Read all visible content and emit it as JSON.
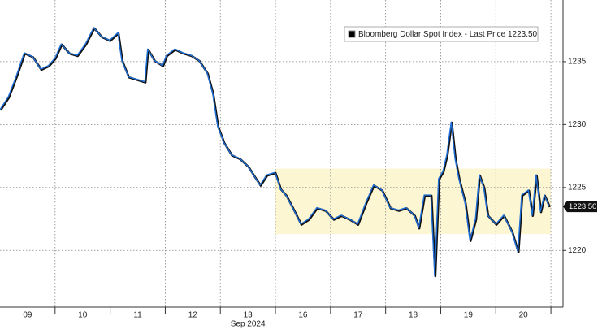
{
  "chart_data": {
    "type": "line",
    "series": [
      {
        "name": "Bloomberg Dollar Spot Index - Last Price 1223.50",
        "color": "#1f6fd8",
        "x": [
          0,
          0.15,
          0.29,
          0.44,
          0.59,
          0.74,
          0.88,
          1.0,
          1.11,
          1.25,
          1.4,
          1.55,
          1.7,
          1.84,
          1.99,
          2.14,
          2.21,
          2.33,
          2.48,
          2.63,
          2.68,
          2.8,
          2.95,
          3.02,
          3.17,
          3.32,
          3.47,
          3.61,
          3.76,
          3.86,
          3.95,
          4.06,
          4.2,
          4.35,
          4.5,
          4.6,
          4.72,
          4.84,
          4.99,
          5.09,
          5.19,
          5.31,
          5.46,
          5.6,
          5.75,
          5.9,
          6.05,
          6.19,
          6.34,
          6.49,
          6.64,
          6.78,
          6.93,
          7.08,
          7.23,
          7.37,
          7.52,
          7.6,
          7.7,
          7.82,
          7.89,
          7.96,
          8.04,
          8.11,
          8.19,
          8.26,
          8.33,
          8.44,
          8.53,
          8.63,
          8.7,
          8.78,
          8.85,
          9.0,
          9.14,
          9.29,
          9.4,
          9.47,
          9.59,
          9.66,
          9.73,
          9.81,
          9.88,
          9.97
        ],
        "values": [
          1231.2,
          1232.2,
          1233.8,
          1235.7,
          1235.4,
          1234.4,
          1234.7,
          1235.3,
          1236.4,
          1235.7,
          1235.5,
          1236.4,
          1237.7,
          1237.0,
          1236.7,
          1237.3,
          1235.1,
          1233.8,
          1233.6,
          1233.4,
          1236.0,
          1235.1,
          1234.7,
          1235.5,
          1236.0,
          1235.7,
          1235.5,
          1235.1,
          1234.1,
          1232.5,
          1229.9,
          1228.6,
          1227.6,
          1227.3,
          1226.7,
          1226.0,
          1225.2,
          1226.0,
          1226.2,
          1224.9,
          1224.4,
          1223.4,
          1222.1,
          1222.5,
          1223.4,
          1223.2,
          1222.5,
          1222.8,
          1222.5,
          1222.1,
          1223.8,
          1225.2,
          1224.8,
          1223.4,
          1223.2,
          1223.4,
          1222.8,
          1221.8,
          1224.4,
          1224.4,
          1218.0,
          1225.7,
          1226.3,
          1227.6,
          1230.2,
          1227.3,
          1225.7,
          1223.8,
          1220.8,
          1222.5,
          1226.0,
          1225.0,
          1222.8,
          1222.1,
          1222.8,
          1221.5,
          1219.9,
          1224.4,
          1224.8,
          1222.8,
          1226.0,
          1223.1,
          1224.4,
          1223.5
        ]
      }
    ],
    "last_price_label": "1223.50",
    "xlim": [
      0,
      10.22
    ],
    "xticks": [
      {
        "value": 0.5,
        "label": "09"
      },
      {
        "value": 1.5,
        "label": "10"
      },
      {
        "value": 2.5,
        "label": "11"
      },
      {
        "value": 3.5,
        "label": "12"
      },
      {
        "value": 4.5,
        "label": "13"
      },
      {
        "value": 5.5,
        "label": "16"
      },
      {
        "value": 6.5,
        "label": "17"
      },
      {
        "value": 7.5,
        "label": "18"
      },
      {
        "value": 8.5,
        "label": "19"
      },
      {
        "value": 9.5,
        "label": "20"
      }
    ],
    "x_sublabel": "Sep 2024",
    "ylim": [
      1215.5,
      1239.9
    ],
    "yticks": [
      1220,
      1225,
      1230,
      1235
    ],
    "highlight": {
      "xlim": [
        5.0,
        10.0
      ],
      "ylim": [
        1221.3,
        1226.5
      ],
      "color": "#fdf6d3"
    },
    "grid": true
  }
}
